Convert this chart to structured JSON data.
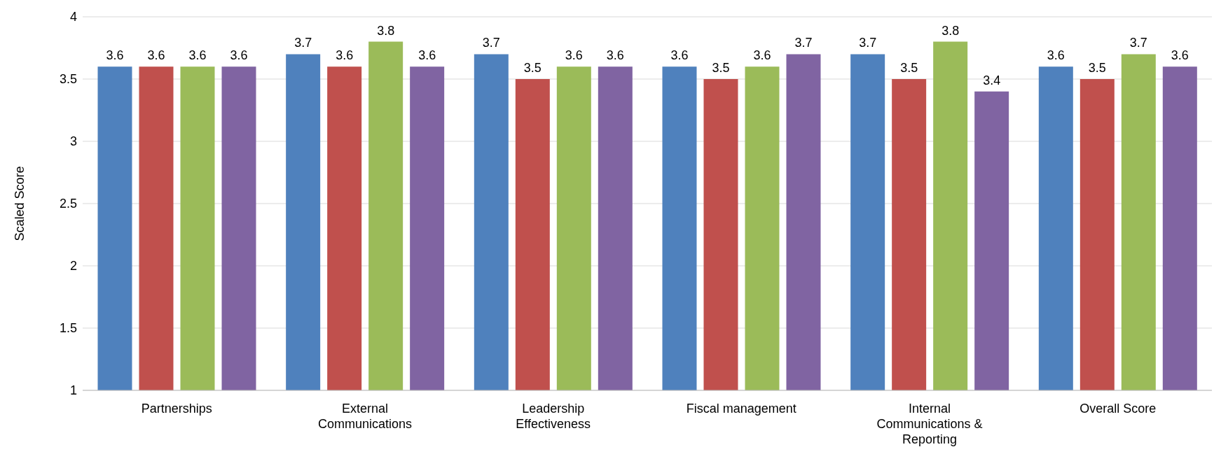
{
  "chart_data": {
    "type": "bar",
    "ylabel": "Scaled Score",
    "categories": [
      "Partnerships",
      "External Communications",
      "Leadership Effectiveness",
      "Fiscal management",
      "Internal Communications & Reporting",
      "Overall Score"
    ],
    "series": [
      {
        "color": "#4f81bd",
        "values": [
          3.6,
          3.7,
          3.7,
          3.6,
          3.7,
          3.6
        ]
      },
      {
        "color": "#c0504d",
        "values": [
          3.6,
          3.6,
          3.5,
          3.5,
          3.5,
          3.5
        ]
      },
      {
        "color": "#9bbb59",
        "values": [
          3.6,
          3.8,
          3.6,
          3.6,
          3.8,
          3.7
        ]
      },
      {
        "color": "#8064a2",
        "values": [
          3.6,
          3.6,
          3.6,
          3.7,
          3.4,
          3.6
        ]
      }
    ],
    "ylim": [
      1,
      4
    ],
    "yticks": [
      1,
      1.5,
      2,
      2.5,
      3,
      3.5,
      4
    ],
    "grid": "y",
    "data_labels": true,
    "legend": false
  }
}
